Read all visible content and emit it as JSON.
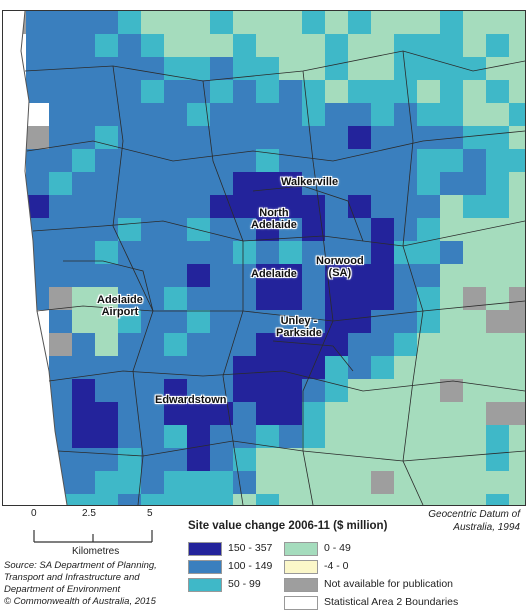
{
  "legend": {
    "title": "Site value change 2006-11 ($ million)",
    "classes": [
      {
        "label": "150 - 357",
        "color": "#23239b"
      },
      {
        "label": "100 - 149",
        "color": "#3a7fbe"
      },
      {
        "label": "50 - 99",
        "color": "#3fb8c8"
      },
      {
        "label": "0 - 49",
        "color": "#a5dcbd"
      },
      {
        "label": "-4 - 0",
        "color": "#fbf7c9"
      },
      {
        "label": "Not available for publication",
        "color": "#9e9e9e"
      },
      {
        "label": "Statistical Area 2 Boundaries",
        "color": "#ffffff"
      }
    ]
  },
  "scale_bar": {
    "ticks": [
      "0",
      "2.5",
      "5"
    ],
    "unit": "Kilometres"
  },
  "datum": "Geocentric Datum of Australia, 1994",
  "source": {
    "line1": "Source: SA Department of Planning,",
    "line2": "Transport and Infrastructure and",
    "line3": "Department of Environment",
    "line4": "© Commonwealth of Australia, 2015"
  },
  "places": {
    "walkerville": "Walkerville",
    "north_adelaide": "North\nAdelaide",
    "norwood": "Norwood\n(SA)",
    "adelaide": "Adelaide",
    "adelaide_airport": "Adelaide\nAirport",
    "unley": "Unley -\nParkside",
    "edwardstown": "Edwardstown"
  }
}
